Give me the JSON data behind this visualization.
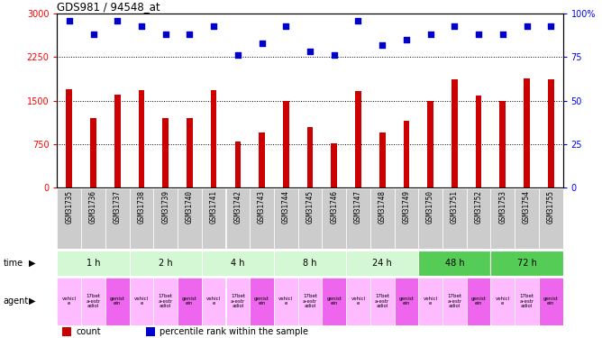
{
  "title": "GDS981 / 94548_at",
  "samples": [
    "GSM31735",
    "GSM31736",
    "GSM31737",
    "GSM31738",
    "GSM31739",
    "GSM31740",
    "GSM31741",
    "GSM31742",
    "GSM31743",
    "GSM31744",
    "GSM31745",
    "GSM31746",
    "GSM31747",
    "GSM31748",
    "GSM31749",
    "GSM31750",
    "GSM31751",
    "GSM31752",
    "GSM31753",
    "GSM31754",
    "GSM31755"
  ],
  "counts": [
    1700,
    1200,
    1600,
    1680,
    1200,
    1200,
    1680,
    800,
    950,
    1490,
    1050,
    760,
    1660,
    950,
    1150,
    1500,
    1870,
    1580,
    1500,
    1880,
    1870
  ],
  "percentiles": [
    96,
    88,
    96,
    93,
    88,
    88,
    93,
    76,
    83,
    93,
    78,
    76,
    96,
    82,
    85,
    88,
    93,
    88,
    88,
    93,
    93
  ],
  "bar_color": "#cc0000",
  "dot_color": "#0000cc",
  "ylim_left": [
    0,
    3000
  ],
  "ylim_right": [
    0,
    100
  ],
  "yticks_left": [
    0,
    750,
    1500,
    2250,
    3000
  ],
  "ytick_labels_left": [
    "0",
    "750",
    "1500",
    "2250",
    "3000"
  ],
  "yticks_right": [
    0,
    25,
    50,
    75,
    100
  ],
  "ytick_labels_right": [
    "0",
    "25",
    "50",
    "75",
    "100%"
  ],
  "grid_lines": [
    750,
    1500,
    2250
  ],
  "time_groups": [
    {
      "label": "1 h",
      "start": 0,
      "end": 3,
      "color": "#d4f7d4"
    },
    {
      "label": "2 h",
      "start": 3,
      "end": 6,
      "color": "#d4f7d4"
    },
    {
      "label": "4 h",
      "start": 6,
      "end": 9,
      "color": "#d4f7d4"
    },
    {
      "label": "8 h",
      "start": 9,
      "end": 12,
      "color": "#d4f7d4"
    },
    {
      "label": "24 h",
      "start": 12,
      "end": 15,
      "color": "#d4f7d4"
    },
    {
      "label": "48 h",
      "start": 15,
      "end": 18,
      "color": "#55cc55"
    },
    {
      "label": "72 h",
      "start": 18,
      "end": 21,
      "color": "#55cc55"
    }
  ],
  "agent_labels": [
    "vehicl\ne",
    "17bet\na-estr\nadiol",
    "genist\nein",
    "vehicl\ne",
    "17bet\na-estr\nadiol",
    "genist\nein",
    "vehicl\ne",
    "17bet\na-estr\nadiol",
    "genist\nein",
    "vehicl\ne",
    "17bet\na-estr\nadiol",
    "genist\nein",
    "vehicl\ne",
    "17bet\na-estr\nadiol",
    "genist\nein",
    "vehicl\ne",
    "17bet\na-estr\nadiol",
    "genist\nein",
    "vehicl\ne",
    "17bet\na-estr\nadiol",
    "genist\nein"
  ],
  "agent_colors": [
    "#ffbbff",
    "#ffbbff",
    "#ee66ee",
    "#ffbbff",
    "#ffbbff",
    "#ee66ee",
    "#ffbbff",
    "#ffbbff",
    "#ee66ee",
    "#ffbbff",
    "#ffbbff",
    "#ee66ee",
    "#ffbbff",
    "#ffbbff",
    "#ee66ee",
    "#ffbbff",
    "#ffbbff",
    "#ee66ee",
    "#ffbbff",
    "#ffbbff",
    "#ee66ee"
  ],
  "legend_count_color": "#cc0000",
  "legend_dot_color": "#0000cc",
  "background_color": "#ffffff",
  "sample_box_color": "#cccccc"
}
